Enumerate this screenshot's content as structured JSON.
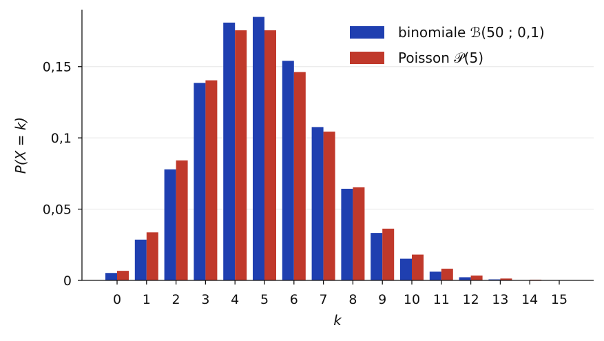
{
  "chart_data": {
    "type": "bar",
    "categories": [
      "0",
      "1",
      "2",
      "3",
      "4",
      "5",
      "6",
      "7",
      "8",
      "9",
      "10",
      "11",
      "12",
      "13",
      "14",
      "15"
    ],
    "series": [
      {
        "name": "binomiale ℬ(50 ; 0,1)",
        "color": "#1f3fb0",
        "values": [
          0.0052,
          0.0286,
          0.0779,
          0.1386,
          0.1809,
          0.1849,
          0.1541,
          0.1076,
          0.0643,
          0.0333,
          0.0152,
          0.0061,
          0.0022,
          0.0007,
          0.0002,
          0.0001
        ]
      },
      {
        "name": "Poisson 𝒫(5)",
        "color": "#c0392b",
        "values": [
          0.0067,
          0.0337,
          0.0842,
          0.1404,
          0.1755,
          0.1755,
          0.1462,
          0.1044,
          0.0653,
          0.0363,
          0.0181,
          0.0082,
          0.0034,
          0.0013,
          0.0005,
          0.0002
        ]
      }
    ],
    "xlabel": "k",
    "ylabel": "P(X = k)",
    "ylim": [
      0,
      0.19
    ],
    "yticks": [
      {
        "value": 0,
        "label": "0"
      },
      {
        "value": 0.05,
        "label": "0,05"
      },
      {
        "value": 0.1,
        "label": "0,1"
      },
      {
        "value": 0.15,
        "label": "0,15"
      }
    ],
    "grid": "y",
    "legend_position": "top-right"
  }
}
